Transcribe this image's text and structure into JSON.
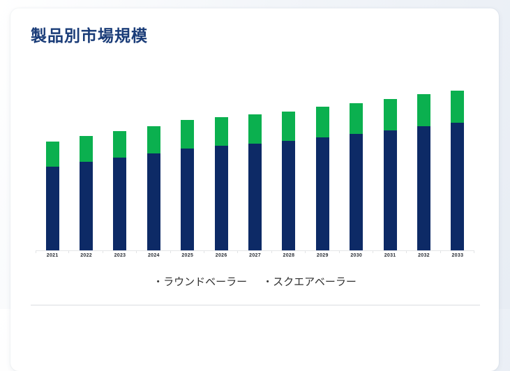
{
  "page": {
    "background_color": "#e8edf4"
  },
  "card": {
    "title": "製品別市場規模",
    "title_color": "#1a3c78",
    "background_color": "#ffffff"
  },
  "chart_data": {
    "type": "bar",
    "stacked": true,
    "title": "製品別市場規模",
    "xlabel": "",
    "ylabel": "",
    "categories": [
      "2021",
      "2022",
      "2023",
      "2024",
      "2025",
      "2026",
      "2027",
      "2028",
      "2029",
      "2030",
      "2031",
      "2032",
      "2033"
    ],
    "series": [
      {
        "name": "ラウンドベーラー",
        "color": "#0d2a66",
        "values": [
          120,
          127,
          133,
          139,
          146,
          150,
          153,
          157,
          162,
          167,
          172,
          178,
          183
        ]
      },
      {
        "name": "スクエアベーラー",
        "color": "#0bb04f",
        "values": [
          36,
          37,
          38,
          39,
          41,
          41,
          42,
          42,
          44,
          44,
          45,
          46,
          46
        ]
      }
    ],
    "ylim": [
      0,
      250
    ],
    "y_axis_labels_visible": false,
    "grid": false,
    "legend_position": "bottom",
    "legend_bullet": "・"
  }
}
